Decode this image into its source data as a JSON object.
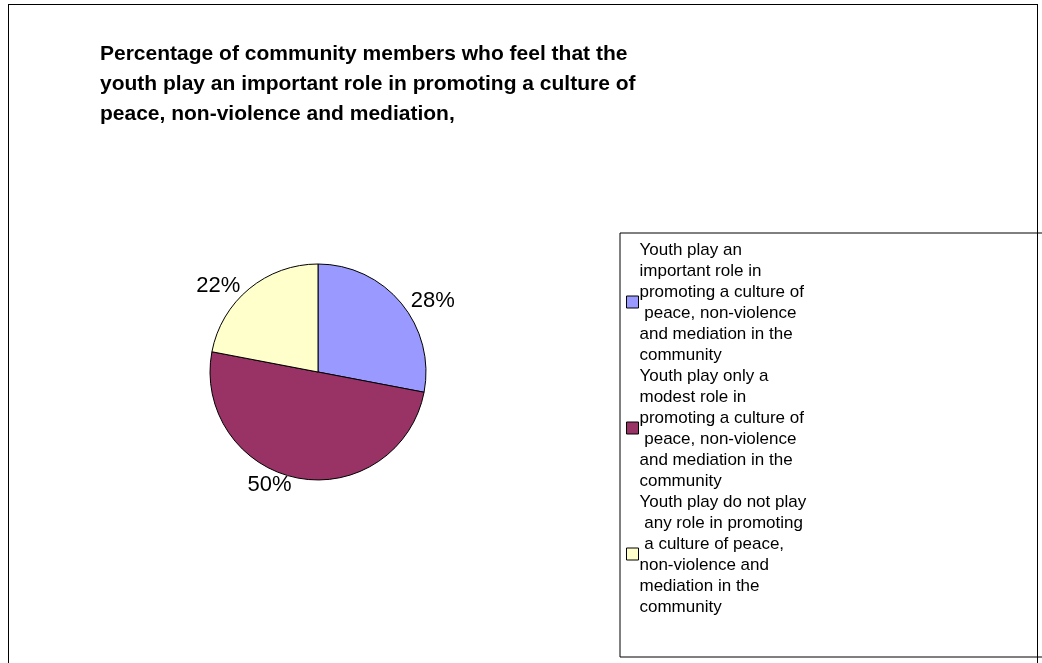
{
  "chart_data": {
    "type": "pie",
    "title": "Percentage of community members who feel that the youth play an important role in promoting a culture of peace, non-violence and mediation,",
    "categories": [
      "Youth play an important role in promoting a culture of peace, non-violence and mediation in the community",
      "Youth play only a modest role in promoting a culture of peace, non-violence and mediation in the community",
      "Youth play do not play any role in promoting a culture of peace, non-violence and mediation in the community"
    ],
    "values": [
      28,
      50,
      22
    ],
    "colors": [
      "#9999ff",
      "#993366",
      "#ffffcc"
    ],
    "value_labels": [
      "28%",
      "50%",
      "22%"
    ],
    "legend": "right"
  }
}
